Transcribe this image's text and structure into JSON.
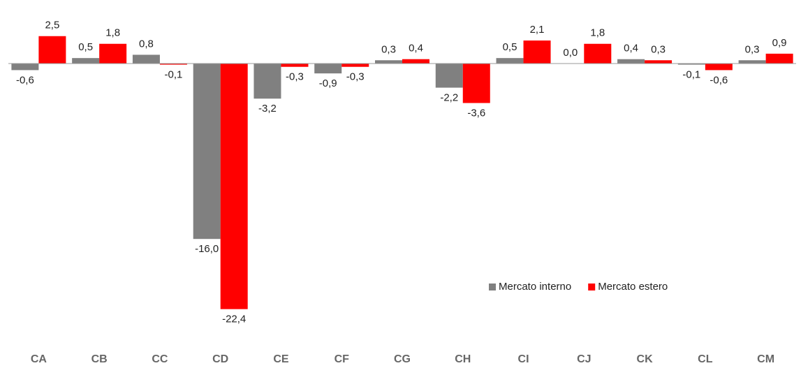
{
  "chart_data": {
    "type": "bar",
    "categories": [
      "CA",
      "CB",
      "CC",
      "CD",
      "CE",
      "CF",
      "CG",
      "CH",
      "CI",
      "CJ",
      "CK",
      "CL",
      "CM"
    ],
    "series": [
      {
        "name": "Mercato interno",
        "color": "#808080",
        "values": [
          -0.6,
          0.5,
          0.8,
          -16.0,
          -3.2,
          -0.9,
          0.3,
          -2.2,
          0.5,
          0.0,
          0.4,
          -0.1,
          0.3
        ],
        "value_labels": [
          "-0,6",
          "0,5",
          "0,8",
          "-16,0",
          "-3,2",
          "-0,9",
          "0,3",
          "-2,2",
          "0,5",
          "0,0",
          "0,4",
          "-0,1",
          "0,3"
        ]
      },
      {
        "name": "Mercato estero",
        "color": "#ff0000",
        "values": [
          2.5,
          1.8,
          -0.1,
          -22.4,
          -0.3,
          -0.3,
          0.4,
          -3.6,
          2.1,
          1.8,
          0.3,
          -0.6,
          0.9
        ],
        "value_labels": [
          "2,5",
          "1,8",
          "-0,1",
          "-22,4",
          "-0,3",
          "-0,3",
          "0,4",
          "-3,6",
          "2,1",
          "1,8",
          "0,3",
          "-0,6",
          "0,9"
        ]
      }
    ],
    "ylim": [
      -24,
      4
    ],
    "legend": "lower right"
  }
}
